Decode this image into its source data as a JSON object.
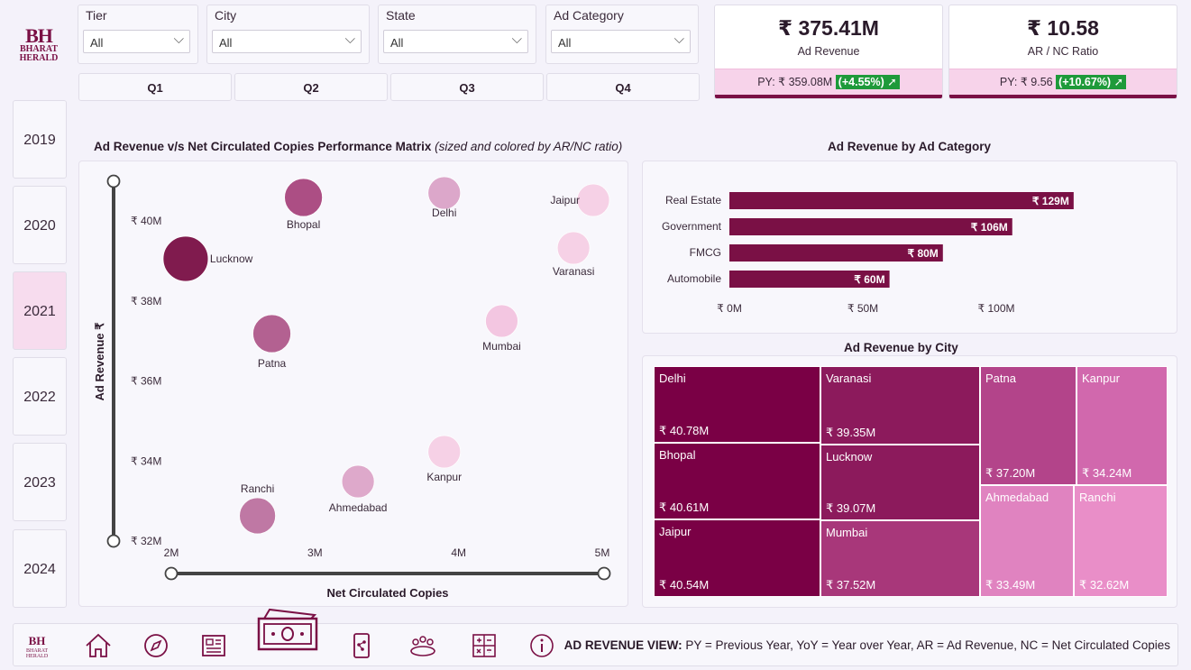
{
  "logo": {
    "initials": "BH",
    "name_line1": "BHARAT",
    "name_line2": "HERALD"
  },
  "filters": [
    {
      "label": "Tier",
      "value": "All"
    },
    {
      "label": "City",
      "value": "All"
    },
    {
      "label": "State",
      "value": "All"
    },
    {
      "label": "Ad Category",
      "value": "All"
    }
  ],
  "quarters": [
    "Q1",
    "Q2",
    "Q3",
    "Q4"
  ],
  "kpis": [
    {
      "value": "₹ 375.41M",
      "label": "Ad Revenue",
      "py_text": "PY: ₹ 359.08M",
      "change": "(+4.55%)",
      "arrow": "➚"
    },
    {
      "value": "₹ 10.58",
      "label": "AR / NC Ratio",
      "py_text": "PY: ₹ 9.56",
      "change": "(+10.67%)",
      "arrow": "➚"
    }
  ],
  "years": [
    "2019",
    "2020",
    "2021",
    "2022",
    "2023",
    "2024"
  ],
  "selected_year": "2021",
  "scatter": {
    "title": "Ad Revenue v/s Net Circulated Copies Performance Matrix",
    "title_note": "(sized and colored by AR/NC ratio)",
    "xlabel": "Net Circulated Copies",
    "ylabel": "Ad Revenue ₹",
    "x_ticks": [
      "2M",
      "3M",
      "4M",
      "5M"
    ],
    "y_ticks": [
      "₹ 40M",
      "₹ 38M",
      "₹ 36M",
      "₹ 34M",
      "₹ 32M"
    ]
  },
  "bar": {
    "title": "Ad Revenue by Ad Category",
    "x_ticks": [
      "₹ 0M",
      "₹ 50M",
      "₹ 100M"
    ]
  },
  "treemap": {
    "title": "Ad Revenue by City"
  },
  "chart_data": [
    {
      "type": "scatter",
      "title": "Ad Revenue v/s Net Circulated Copies Performance Matrix",
      "xlabel": "Net Circulated Copies",
      "ylabel": "Ad Revenue ₹",
      "xlim": [
        2,
        5
      ],
      "ylim": [
        32,
        40.5
      ],
      "points": [
        {
          "city": "Bhopal",
          "x": 2.92,
          "y": 40.61,
          "color": "#a8457e"
        },
        {
          "city": "Delhi",
          "x": 3.9,
          "y": 40.78,
          "color": "#dba3c8"
        },
        {
          "city": "Jaipur",
          "x": 4.95,
          "y": 40.54,
          "color": "#f6cfe5"
        },
        {
          "city": "Lucknow",
          "x": 2.1,
          "y": 39.07,
          "color": "#7a1045"
        },
        {
          "city": "Varanasi",
          "x": 4.8,
          "y": 39.35,
          "color": "#f6cfe5"
        },
        {
          "city": "Patna",
          "x": 2.7,
          "y": 37.2,
          "color": "#b05a8c"
        },
        {
          "city": "Mumbai",
          "x": 4.3,
          "y": 37.52,
          "color": "#f3c4e0"
        },
        {
          "city": "Kanpur",
          "x": 3.9,
          "y": 34.24,
          "color": "#f6cfe5"
        },
        {
          "city": "Ahmedabad",
          "x": 3.3,
          "y": 33.49,
          "color": "#dda5c9"
        },
        {
          "city": "Ranchi",
          "x": 2.6,
          "y": 32.62,
          "color": "#bd72a0"
        }
      ]
    },
    {
      "type": "bar",
      "title": "Ad Revenue by Ad Category",
      "categories": [
        "Real Estate",
        "Government",
        "FMCG",
        "Automobile"
      ],
      "values": [
        129,
        106,
        80,
        60
      ],
      "value_labels": [
        "₹ 129M",
        "₹ 106M",
        "₹ 80M",
        "₹ 60M"
      ],
      "xlim": [
        0,
        150
      ],
      "color": "#7a1045"
    },
    {
      "type": "treemap",
      "title": "Ad Revenue by City",
      "items": [
        {
          "name": "Delhi",
          "value": 40.78,
          "label": "₹ 40.78M",
          "color": "#7a0045"
        },
        {
          "name": "Bhopal",
          "value": 40.61,
          "label": "₹ 40.61M",
          "color": "#7a0045"
        },
        {
          "name": "Jaipur",
          "value": 40.54,
          "label": "₹ 40.54M",
          "color": "#7a0045"
        },
        {
          "name": "Varanasi",
          "value": 39.35,
          "label": "₹ 39.35M",
          "color": "#8c1a5c"
        },
        {
          "name": "Lucknow",
          "value": 39.07,
          "label": "₹ 39.07M",
          "color": "#8c1a5c"
        },
        {
          "name": "Mumbai",
          "value": 37.52,
          "label": "₹ 37.52M",
          "color": "#a8377a"
        },
        {
          "name": "Patna",
          "value": 37.2,
          "label": "₹ 37.20M",
          "color": "#b3448a"
        },
        {
          "name": "Kanpur",
          "value": 34.24,
          "label": "₹ 34.24M",
          "color": "#d168ad"
        },
        {
          "name": "Ahmedabad",
          "value": 33.49,
          "label": "₹ 33.49M",
          "color": "#e083c0"
        },
        {
          "name": "Ranchi",
          "value": 32.62,
          "label": "₹ 32.62M",
          "color": "#e98ec8"
        }
      ]
    }
  ],
  "footer": {
    "nav_icons": [
      "logo-icon",
      "home-icon",
      "compass-icon",
      "newspaper-icon",
      "money-icon",
      "mobile-icon",
      "people-icon",
      "calculator-icon",
      "info-icon"
    ],
    "view_title": "AD REVENUE VIEW:",
    "legend": "PY = Previous Year, YoY = Year over Year, AR = Ad Revenue, NC = Net Circulated Copies"
  }
}
